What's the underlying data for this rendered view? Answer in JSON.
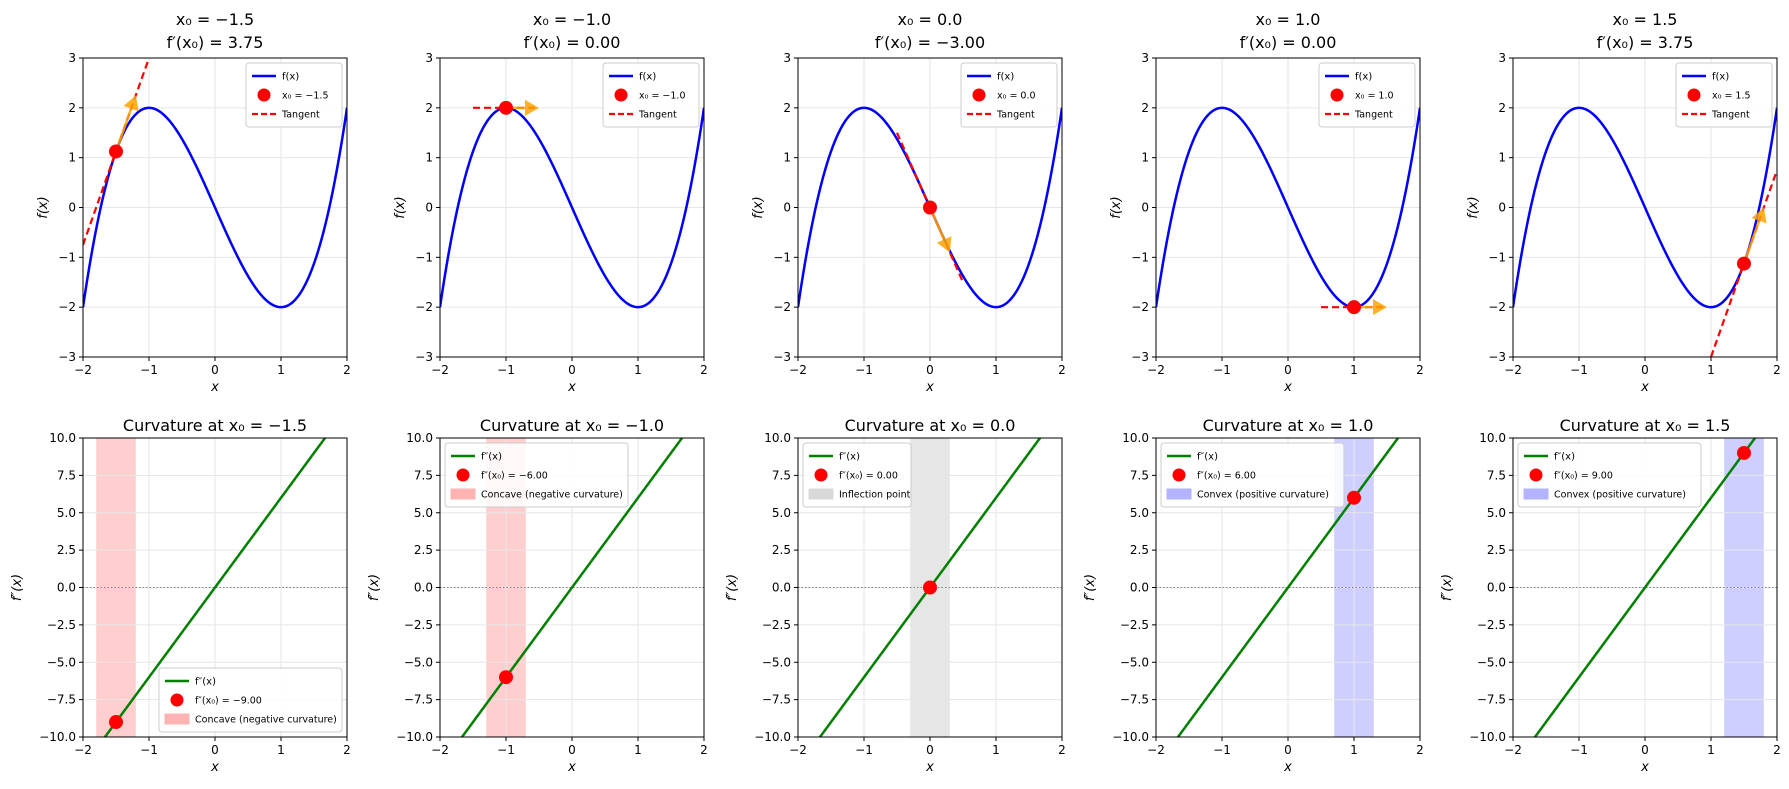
{
  "figure": {
    "function": "f(x) = x^3 - 3x",
    "colors": {
      "function_curve": "#0000ff",
      "second_derivative_curve": "#008000",
      "point": "#ff0000",
      "tangent": "#ff0000",
      "direction_arrow": "#ffa500",
      "concave_region": "#ffb3b3",
      "convex_region": "#b3b3ff",
      "inflection_region": "#d9d9d9",
      "grid": "#e6e6e6",
      "zero_line": "#808080"
    }
  },
  "chart_data": [
    {
      "type": "line",
      "row": "top",
      "panel": 1,
      "title_line1": "x₀ = −1.5",
      "title_line2": "f′(x₀) = 3.75",
      "xlabel": "x",
      "ylabel": "f(x)",
      "xlim": [
        -2,
        2
      ],
      "ylim": [
        -3,
        3
      ],
      "xticks": [
        -2,
        -1,
        0,
        1,
        2
      ],
      "yticks": [
        -3,
        -2,
        -1,
        0,
        1,
        2,
        3
      ],
      "xtick_labels": [
        "−2",
        "−1",
        "0",
        "1",
        "2"
      ],
      "ytick_labels": [
        "−3",
        "−2",
        "−1",
        "0",
        "1",
        "2",
        "3"
      ],
      "x0": -1.5,
      "f_x0": 1.125,
      "slope": 3.75,
      "tangent_x_range": [
        -2.0,
        -1.0
      ],
      "arrow": {
        "from_x": -1.5,
        "to_x": -1.2
      },
      "legend": {
        "position": "upper right",
        "entries": [
          "f(x)",
          "x₀ = −1.5",
          "Tangent"
        ]
      },
      "grid": true
    },
    {
      "type": "line",
      "row": "top",
      "panel": 2,
      "title_line1": "x₀ = −1.0",
      "title_line2": "f′(x₀) = 0.00",
      "xlabel": "x",
      "ylabel": "f(x)",
      "xlim": [
        -2,
        2
      ],
      "ylim": [
        -3,
        3
      ],
      "xticks": [
        -2,
        -1,
        0,
        1,
        2
      ],
      "yticks": [
        -3,
        -2,
        -1,
        0,
        1,
        2,
        3
      ],
      "xtick_labels": [
        "−2",
        "−1",
        "0",
        "1",
        "2"
      ],
      "ytick_labels": [
        "−3",
        "−2",
        "−1",
        "0",
        "1",
        "2",
        "3"
      ],
      "x0": -1.0,
      "f_x0": 2.0,
      "slope": 0.0,
      "tangent_x_range": [
        -1.5,
        -0.5
      ],
      "arrow": {
        "from_x": -1.0,
        "to_x": -0.5
      },
      "legend": {
        "position": "upper right",
        "entries": [
          "f(x)",
          "x₀ = −1.0",
          "Tangent"
        ]
      },
      "grid": true
    },
    {
      "type": "line",
      "row": "top",
      "panel": 3,
      "title_line1": "x₀ = 0.0",
      "title_line2": "f′(x₀) = −3.00",
      "xlabel": "x",
      "ylabel": "f(x)",
      "xlim": [
        -2,
        2
      ],
      "ylim": [
        -3,
        3
      ],
      "xticks": [
        -2,
        -1,
        0,
        1,
        2
      ],
      "yticks": [
        -3,
        -2,
        -1,
        0,
        1,
        2,
        3
      ],
      "xtick_labels": [
        "−2",
        "−1",
        "0",
        "1",
        "2"
      ],
      "ytick_labels": [
        "−3",
        "−2",
        "−1",
        "0",
        "1",
        "2",
        "3"
      ],
      "x0": 0.0,
      "f_x0": 0.0,
      "slope": -3.0,
      "tangent_x_range": [
        -0.5,
        0.5
      ],
      "arrow": {
        "from_x": 0.0,
        "to_x": 0.3
      },
      "legend": {
        "position": "upper right",
        "entries": [
          "f(x)",
          "x₀ = 0.0",
          "Tangent"
        ]
      },
      "grid": true
    },
    {
      "type": "line",
      "row": "top",
      "panel": 4,
      "title_line1": "x₀ = 1.0",
      "title_line2": "f′(x₀) = 0.00",
      "xlabel": "x",
      "ylabel": "f(x)",
      "xlim": [
        -2,
        2
      ],
      "ylim": [
        -3,
        3
      ],
      "xticks": [
        -2,
        -1,
        0,
        1,
        2
      ],
      "yticks": [
        -3,
        -2,
        -1,
        0,
        1,
        2,
        3
      ],
      "xtick_labels": [
        "−2",
        "−1",
        "0",
        "1",
        "2"
      ],
      "ytick_labels": [
        "−3",
        "−2",
        "−1",
        "0",
        "1",
        "2",
        "3"
      ],
      "x0": 1.0,
      "f_x0": -2.0,
      "slope": 0.0,
      "tangent_x_range": [
        0.5,
        1.5
      ],
      "arrow": {
        "from_x": 1.0,
        "to_x": 1.5
      },
      "legend": {
        "position": "upper right",
        "entries": [
          "f(x)",
          "x₀ = 1.0",
          "Tangent"
        ]
      },
      "grid": true
    },
    {
      "type": "line",
      "row": "top",
      "panel": 5,
      "title_line1": "x₀ = 1.5",
      "title_line2": "f′(x₀) = 3.75",
      "xlabel": "x",
      "ylabel": "f(x)",
      "xlim": [
        -2,
        2
      ],
      "ylim": [
        -3,
        3
      ],
      "xticks": [
        -2,
        -1,
        0,
        1,
        2
      ],
      "yticks": [
        -3,
        -2,
        -1,
        0,
        1,
        2,
        3
      ],
      "xtick_labels": [
        "−2",
        "−1",
        "0",
        "1",
        "2"
      ],
      "ytick_labels": [
        "−3",
        "−2",
        "−1",
        "0",
        "1",
        "2",
        "3"
      ],
      "x0": 1.5,
      "f_x0": -1.125,
      "slope": 3.75,
      "tangent_x_range": [
        1.0,
        2.0
      ],
      "arrow": {
        "from_x": 1.5,
        "to_x": 1.8
      },
      "legend": {
        "position": "upper right",
        "entries": [
          "f(x)",
          "x₀ = 1.5",
          "Tangent"
        ]
      },
      "grid": true
    },
    {
      "type": "line",
      "row": "bottom",
      "panel": 1,
      "title": "Curvature at x₀ = −1.5",
      "xlabel": "x",
      "ylabel": "f″(x)",
      "xlim": [
        -2,
        2
      ],
      "ylim": [
        -10,
        10
      ],
      "xticks": [
        -2,
        -1,
        0,
        1,
        2
      ],
      "yticks": [
        -10,
        -7.5,
        -5,
        -2.5,
        0,
        2.5,
        5,
        7.5,
        10
      ],
      "xtick_labels": [
        "−2",
        "−1",
        "0",
        "1",
        "2"
      ],
      "ytick_labels": [
        "−10.0",
        "−7.5",
        "−5.0",
        "−2.5",
        "0.0",
        "2.5",
        "5.0",
        "7.5",
        "10.0"
      ],
      "x0": -1.5,
      "fpp_x0": -9.0,
      "region": {
        "x_range": [
          -1.8,
          -1.2
        ],
        "kind": "concave"
      },
      "legend": {
        "position": "lower right",
        "entries": [
          "f″(x)",
          "f″(x₀) = −9.00",
          "Concave (negative curvature)"
        ]
      },
      "grid": true
    },
    {
      "type": "line",
      "row": "bottom",
      "panel": 2,
      "title": "Curvature at x₀ = −1.0",
      "xlabel": "x",
      "ylabel": "f″(x)",
      "xlim": [
        -2,
        2
      ],
      "ylim": [
        -10,
        10
      ],
      "xticks": [
        -2,
        -1,
        0,
        1,
        2
      ],
      "yticks": [
        -10,
        -7.5,
        -5,
        -2.5,
        0,
        2.5,
        5,
        7.5,
        10
      ],
      "xtick_labels": [
        "−2",
        "−1",
        "0",
        "1",
        "2"
      ],
      "ytick_labels": [
        "−10.0",
        "−7.5",
        "−5.0",
        "−2.5",
        "0.0",
        "2.5",
        "5.0",
        "7.5",
        "10.0"
      ],
      "x0": -1.0,
      "fpp_x0": -6.0,
      "region": {
        "x_range": [
          -1.3,
          -0.7
        ],
        "kind": "concave"
      },
      "legend": {
        "position": "upper left",
        "entries": [
          "f″(x)",
          "f″(x₀) = −6.00",
          "Concave (negative curvature)"
        ]
      },
      "grid": true
    },
    {
      "type": "line",
      "row": "bottom",
      "panel": 3,
      "title": "Curvature at x₀ = 0.0",
      "xlabel": "x",
      "ylabel": "f″(x)",
      "xlim": [
        -2,
        2
      ],
      "ylim": [
        -10,
        10
      ],
      "xticks": [
        -2,
        -1,
        0,
        1,
        2
      ],
      "yticks": [
        -10,
        -7.5,
        -5,
        -2.5,
        0,
        2.5,
        5,
        7.5,
        10
      ],
      "xtick_labels": [
        "−2",
        "−1",
        "0",
        "1",
        "2"
      ],
      "ytick_labels": [
        "−10.0",
        "−7.5",
        "−5.0",
        "−2.5",
        "0.0",
        "2.5",
        "5.0",
        "7.5",
        "10.0"
      ],
      "x0": 0.0,
      "fpp_x0": 0.0,
      "region": {
        "x_range": [
          -0.3,
          0.3
        ],
        "kind": "inflection"
      },
      "legend": {
        "position": "upper left",
        "entries": [
          "f″(x)",
          "f″(x₀) = 0.00",
          "Inflection point"
        ]
      },
      "grid": true
    },
    {
      "type": "line",
      "row": "bottom",
      "panel": 4,
      "title": "Curvature at x₀ = 1.0",
      "xlabel": "x",
      "ylabel": "f″(x)",
      "xlim": [
        -2,
        2
      ],
      "ylim": [
        -10,
        10
      ],
      "xticks": [
        -2,
        -1,
        0,
        1,
        2
      ],
      "yticks": [
        -10,
        -7.5,
        -5,
        -2.5,
        0,
        2.5,
        5,
        7.5,
        10
      ],
      "xtick_labels": [
        "−2",
        "−1",
        "0",
        "1",
        "2"
      ],
      "ytick_labels": [
        "−10.0",
        "−7.5",
        "−5.0",
        "−2.5",
        "0.0",
        "2.5",
        "5.0",
        "7.5",
        "10.0"
      ],
      "x0": 1.0,
      "fpp_x0": 6.0,
      "region": {
        "x_range": [
          0.7,
          1.3
        ],
        "kind": "convex"
      },
      "legend": {
        "position": "upper left",
        "entries": [
          "f″(x)",
          "f″(x₀) = 6.00",
          "Convex (positive curvature)"
        ]
      },
      "grid": true
    },
    {
      "type": "line",
      "row": "bottom",
      "panel": 5,
      "title": "Curvature at x₀ = 1.5",
      "xlabel": "x",
      "ylabel": "f″(x)",
      "xlim": [
        -2,
        2
      ],
      "ylim": [
        -10,
        10
      ],
      "xticks": [
        -2,
        -1,
        0,
        1,
        2
      ],
      "yticks": [
        -10,
        -7.5,
        -5,
        -2.5,
        0,
        2.5,
        5,
        7.5,
        10
      ],
      "xtick_labels": [
        "−2",
        "−1",
        "0",
        "1",
        "2"
      ],
      "ytick_labels": [
        "−10.0",
        "−7.5",
        "−5.0",
        "−2.5",
        "0.0",
        "2.5",
        "5.0",
        "7.5",
        "10.0"
      ],
      "x0": 1.5,
      "fpp_x0": 9.0,
      "region": {
        "x_range": [
          1.2,
          1.8
        ],
        "kind": "convex"
      },
      "legend": {
        "position": "upper left",
        "entries": [
          "f″(x)",
          "f″(x₀) = 9.00",
          "Convex (positive curvature)"
        ]
      },
      "grid": true
    }
  ]
}
